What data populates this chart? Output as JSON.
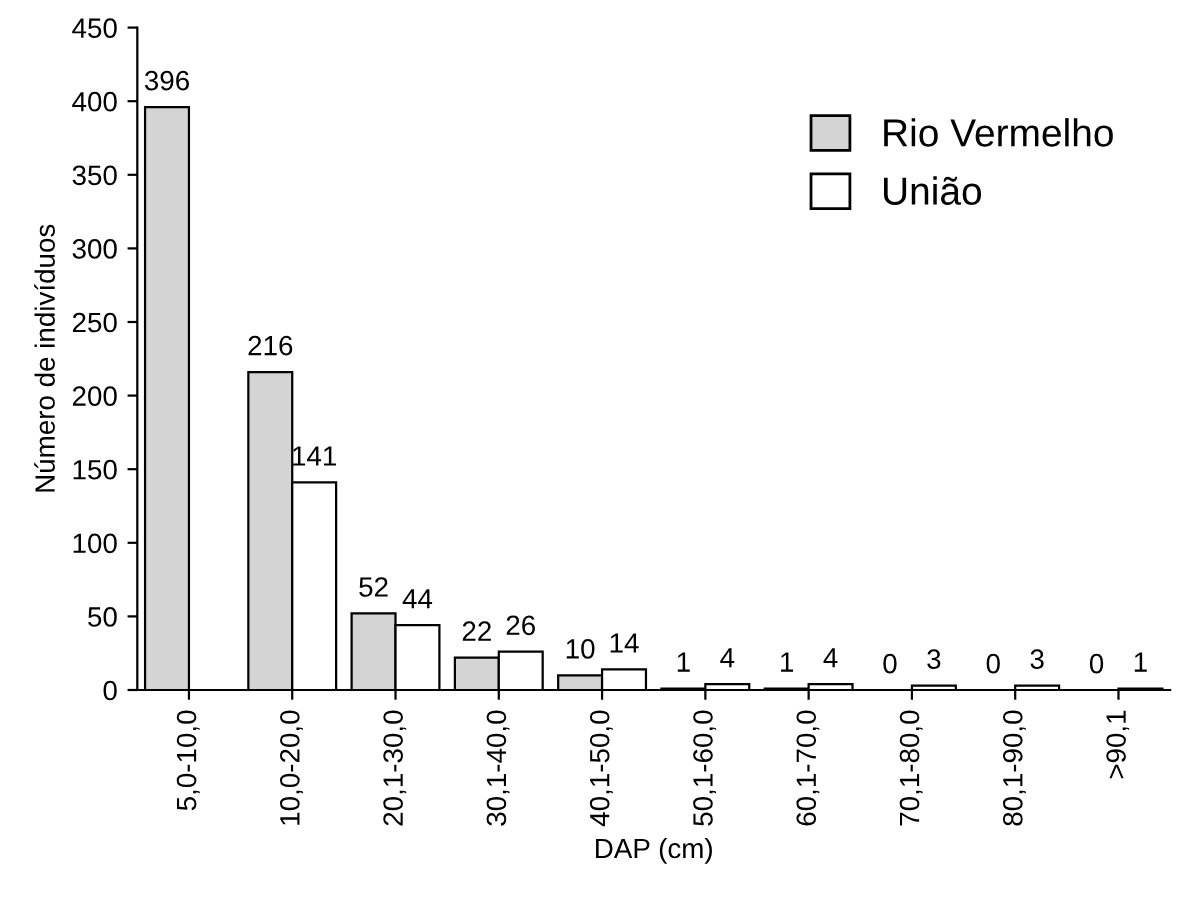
{
  "chart_data": {
    "type": "bar",
    "xlabel": "DAP (cm)",
    "ylabel": "Número de indivíduos",
    "categories": [
      "5,0-10,0",
      "10,0-20,0",
      "20,1-30,0",
      "30,1-40,0",
      "40,1-50,0",
      "50,1-60,0",
      "60,1-70,0",
      "70,1-80,0",
      "80,1-90,0",
      ">90,1"
    ],
    "series": [
      {
        "name": "Rio Vermelho",
        "color": "#d4d4d4",
        "values": [
          396,
          216,
          52,
          22,
          10,
          1,
          1,
          0,
          0,
          0
        ],
        "value_labels": [
          "396",
          "216",
          "52",
          "22",
          "10",
          "1",
          "1",
          "0",
          "0",
          "0"
        ]
      },
      {
        "name": "União",
        "color": "#ffffff",
        "values": [
          null,
          141,
          44,
          26,
          14,
          4,
          4,
          3,
          3,
          1
        ],
        "value_labels": [
          null,
          "141",
          "44",
          "26",
          "14",
          "4",
          "4",
          "3",
          "3",
          "1"
        ]
      }
    ],
    "ylim": [
      0,
      450
    ],
    "yticks": [
      0,
      50,
      100,
      150,
      200,
      250,
      300,
      350,
      400,
      450
    ],
    "grid": false,
    "legend": "top right"
  }
}
